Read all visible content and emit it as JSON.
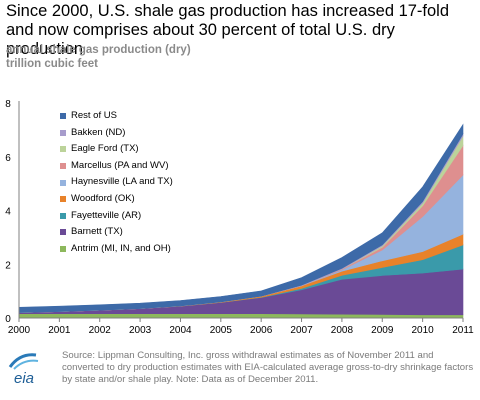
{
  "title": "Since 2000, U.S. shale gas production has increased 17-fold and now comprises about 30 percent of total U.S. dry production",
  "subtitle_lines": [
    "annual shale gas production (dry)",
    "trillion cubic feet"
  ],
  "source": "Source: Lippman Consulting, Inc. gross withdrawal estimates as of November 2011 and converted to dry production estimates with EIA-calculated average gross-to-dry shrinkage factors by state and/or shale play. Note: Data as of December 2011.",
  "logo": {
    "text": "eia"
  },
  "chart_data": {
    "type": "area",
    "stacked": true,
    "x": [
      "2000",
      "2001",
      "2002",
      "2003",
      "2004",
      "2005",
      "2006",
      "2007",
      "2008",
      "2009",
      "2010",
      "2011"
    ],
    "ylim": [
      0,
      8
    ],
    "yticks": [
      0,
      2,
      4,
      6,
      8
    ],
    "grid": false,
    "legend_position": "top-left",
    "series": [
      {
        "name": "Antrim (MI, IN, and OH)",
        "color": "#8db85c",
        "values": [
          0.16,
          0.16,
          0.16,
          0.16,
          0.16,
          0.16,
          0.16,
          0.15,
          0.14,
          0.13,
          0.12,
          0.12
        ]
      },
      {
        "name": "Barnett (TX)",
        "color": "#6a4a96",
        "values": [
          0.04,
          0.08,
          0.13,
          0.19,
          0.28,
          0.42,
          0.6,
          0.9,
          1.3,
          1.45,
          1.55,
          1.7
        ]
      },
      {
        "name": "Fayetteville (AR)",
        "color": "#3a9aaa",
        "values": [
          0,
          0,
          0,
          0,
          0,
          0,
          0.01,
          0.05,
          0.15,
          0.3,
          0.5,
          0.9
        ]
      },
      {
        "name": "Woodford (OK)",
        "color": "#e8822a",
        "values": [
          0,
          0,
          0,
          0,
          0.01,
          0.02,
          0.04,
          0.1,
          0.15,
          0.25,
          0.3,
          0.4
        ]
      },
      {
        "name": "Haynesville (LA and TX)",
        "color": "#95b3de",
        "values": [
          0,
          0,
          0,
          0,
          0,
          0,
          0,
          0,
          0.05,
          0.4,
          1.3,
          2.2
        ]
      },
      {
        "name": "Marcellus (PA and WV)",
        "color": "#de8f8f",
        "values": [
          0,
          0,
          0,
          0,
          0,
          0,
          0,
          0,
          0.03,
          0.1,
          0.4,
          1.1
        ]
      },
      {
        "name": "Eagle Ford (TX)",
        "color": "#bcd39a",
        "values": [
          0,
          0,
          0,
          0,
          0,
          0,
          0,
          0,
          0,
          0.05,
          0.1,
          0.35
        ]
      },
      {
        "name": "Bakken (ND)",
        "color": "#a79ccc",
        "values": [
          0,
          0,
          0,
          0,
          0,
          0,
          0,
          0.02,
          0.03,
          0.04,
          0.06,
          0.08
        ]
      },
      {
        "name": "Rest of US",
        "color": "#3d6aa8",
        "values": [
          0.2,
          0.2,
          0.2,
          0.2,
          0.2,
          0.2,
          0.2,
          0.28,
          0.4,
          0.45,
          0.55,
          0.35
        ]
      }
    ],
    "legend_order": [
      "Rest of US",
      "Bakken (ND)",
      "Eagle Ford (TX)",
      "Marcellus (PA and WV)",
      "Haynesville (LA and TX)",
      "Woodford (OK)",
      "Fayetteville (AR)",
      "Barnett (TX)",
      "Antrim (MI, IN, and OH)"
    ]
  }
}
